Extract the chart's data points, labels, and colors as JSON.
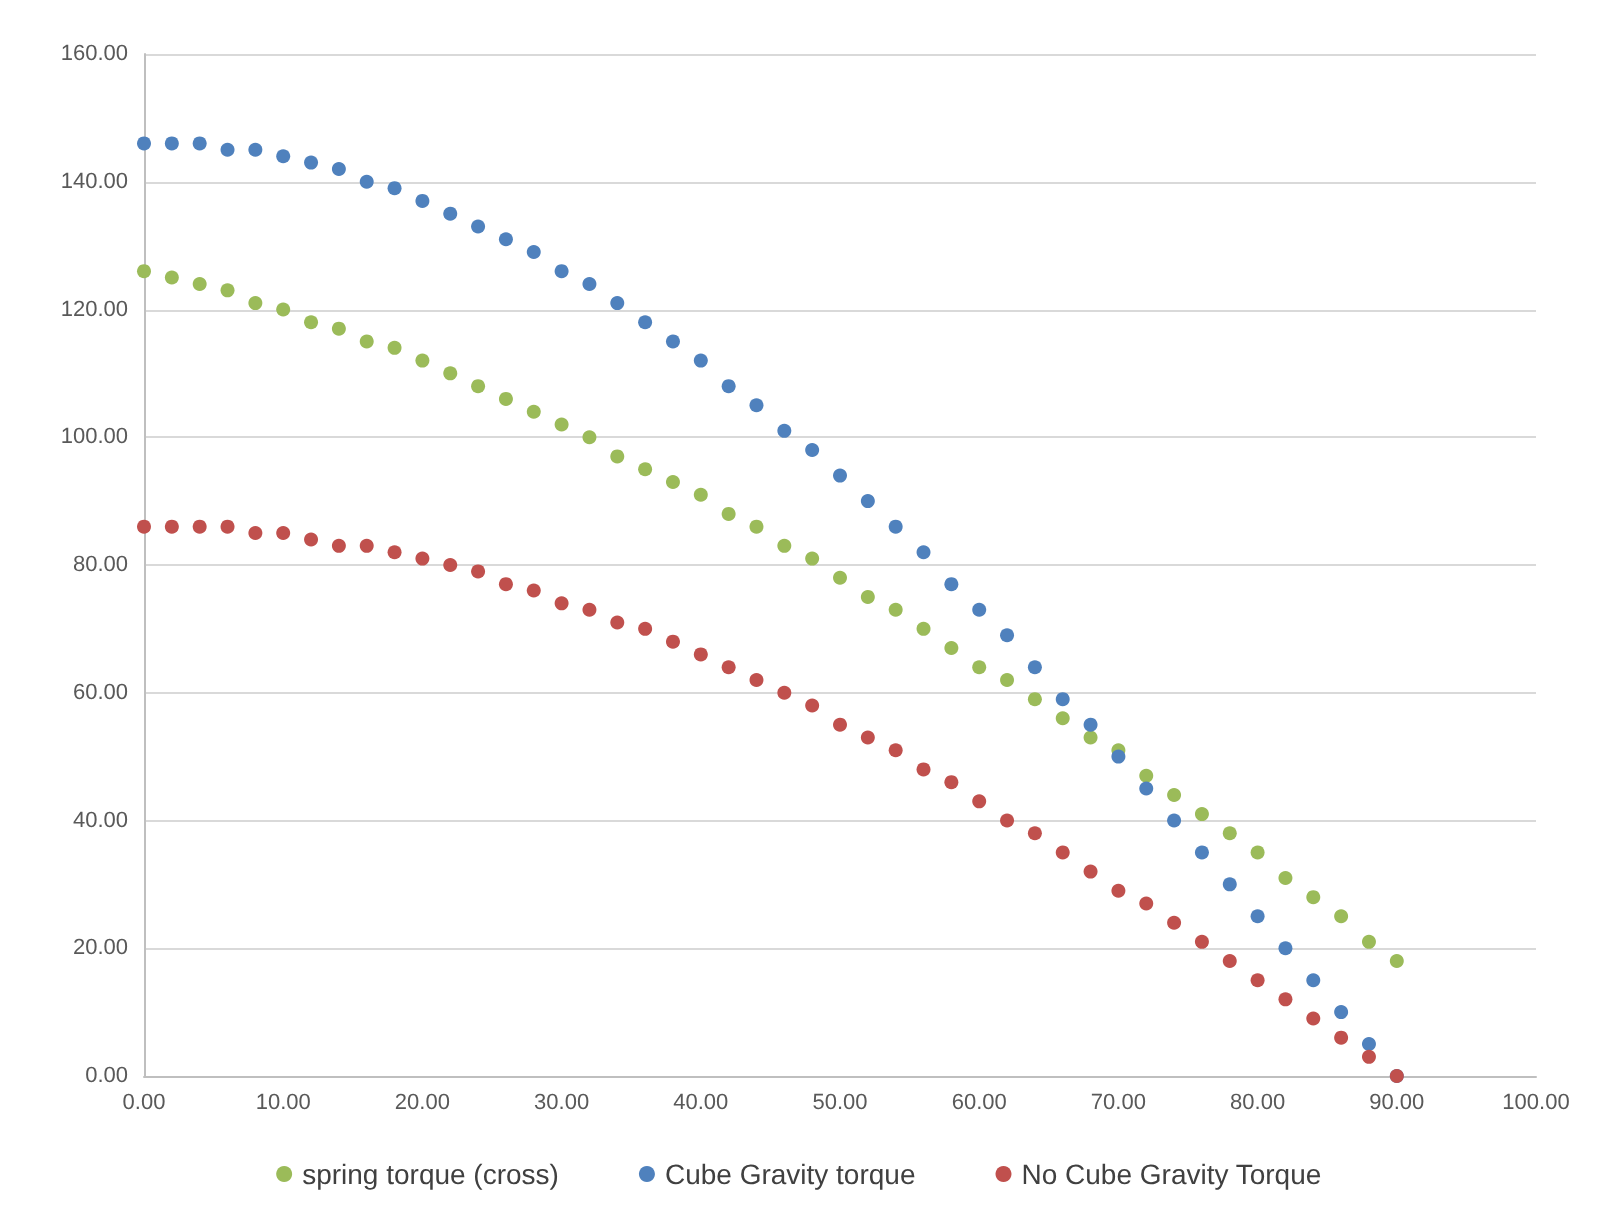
{
  "chart_data": {
    "type": "scatter",
    "x": [
      0,
      2,
      4,
      6,
      8,
      10,
      12,
      14,
      16,
      18,
      20,
      22,
      24,
      26,
      28,
      30,
      32,
      34,
      36,
      38,
      40,
      42,
      44,
      46,
      48,
      50,
      52,
      54,
      56,
      58,
      60,
      62,
      64,
      66,
      68,
      70,
      72,
      74,
      76,
      78,
      80,
      82,
      84,
      86,
      88,
      90
    ],
    "series": [
      {
        "name": "spring torque (cross)",
        "color": "#9bbb59",
        "values": [
          126,
          125,
          124,
          123,
          121,
          120,
          118,
          117,
          115,
          114,
          112,
          110,
          108,
          106,
          104,
          102,
          100,
          97,
          95,
          93,
          91,
          88,
          86,
          83,
          81,
          78,
          75,
          73,
          70,
          67,
          64,
          62,
          59,
          56,
          53,
          51,
          47,
          44,
          41,
          38,
          35,
          31,
          28,
          25,
          21,
          18
        ]
      },
      {
        "name": "Cube Gravity torque",
        "color": "#4f81bd",
        "values": [
          146,
          146,
          146,
          145,
          145,
          144,
          143,
          142,
          140,
          139,
          137,
          135,
          133,
          131,
          129,
          126,
          124,
          121,
          118,
          115,
          112,
          108,
          105,
          101,
          98,
          94,
          90,
          86,
          82,
          77,
          73,
          69,
          64,
          59,
          55,
          50,
          45,
          40,
          35,
          30,
          25,
          20,
          15,
          10,
          5,
          0
        ]
      },
      {
        "name": "No Cube Gravity Torque",
        "color": "#c0504d",
        "values": [
          86,
          86,
          86,
          86,
          85,
          85,
          84,
          83,
          83,
          82,
          81,
          80,
          79,
          77,
          76,
          74,
          73,
          71,
          70,
          68,
          66,
          64,
          62,
          60,
          58,
          55,
          53,
          51,
          48,
          46,
          43,
          40,
          38,
          35,
          32,
          29,
          27,
          24,
          21,
          18,
          15,
          12,
          9,
          6,
          3,
          0
        ]
      }
    ],
    "xlim": [
      0,
      100
    ],
    "xticks": [
      {
        "value": 0,
        "label": "0.00"
      },
      {
        "value": 10,
        "label": "10.00"
      },
      {
        "value": 20,
        "label": "20.00"
      },
      {
        "value": 30,
        "label": "30.00"
      },
      {
        "value": 40,
        "label": "40.00"
      },
      {
        "value": 50,
        "label": "50.00"
      },
      {
        "value": 60,
        "label": "60.00"
      },
      {
        "value": 70,
        "label": "70.00"
      },
      {
        "value": 80,
        "label": "80.00"
      },
      {
        "value": 90,
        "label": "90.00"
      },
      {
        "value": 100,
        "label": "100.00"
      }
    ],
    "ylim": [
      0,
      160
    ],
    "yticks": [
      {
        "value": 0,
        "label": "0.00"
      },
      {
        "value": 20,
        "label": "20.00"
      },
      {
        "value": 40,
        "label": "40.00"
      },
      {
        "value": 60,
        "label": "60.00"
      },
      {
        "value": 80,
        "label": "80.00"
      },
      {
        "value": 100,
        "label": "100.00"
      },
      {
        "value": 120,
        "label": "120.00"
      },
      {
        "value": 140,
        "label": "140.00"
      },
      {
        "value": 160,
        "label": "160.00"
      }
    ],
    "grid": "y",
    "legend": "bottom",
    "marker": "circle"
  }
}
